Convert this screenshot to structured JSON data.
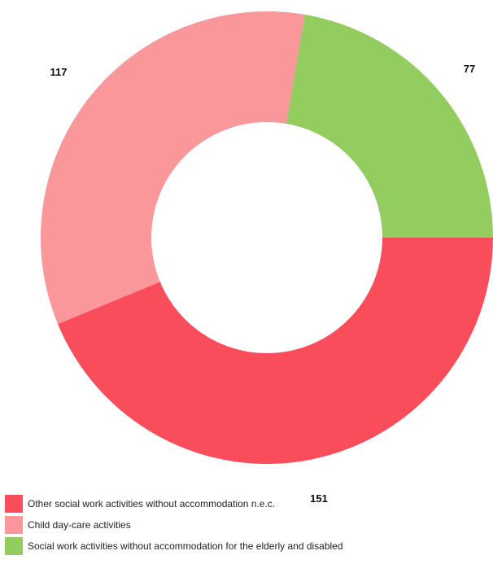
{
  "chart_data": {
    "type": "pie",
    "donut": true,
    "categories": [
      "Other social work activities without accommodation n.e.c.",
      "Child day-care activities",
      "Social work activities without accommodation for the elderly and disabled"
    ],
    "values": [
      151,
      117,
      77
    ],
    "data_labels": [
      "151",
      "117",
      "77"
    ],
    "colors": [
      "#fa4d5c",
      "#fa979b",
      "#94cd5f"
    ],
    "legend_position": "bottom-left",
    "title": ""
  }
}
